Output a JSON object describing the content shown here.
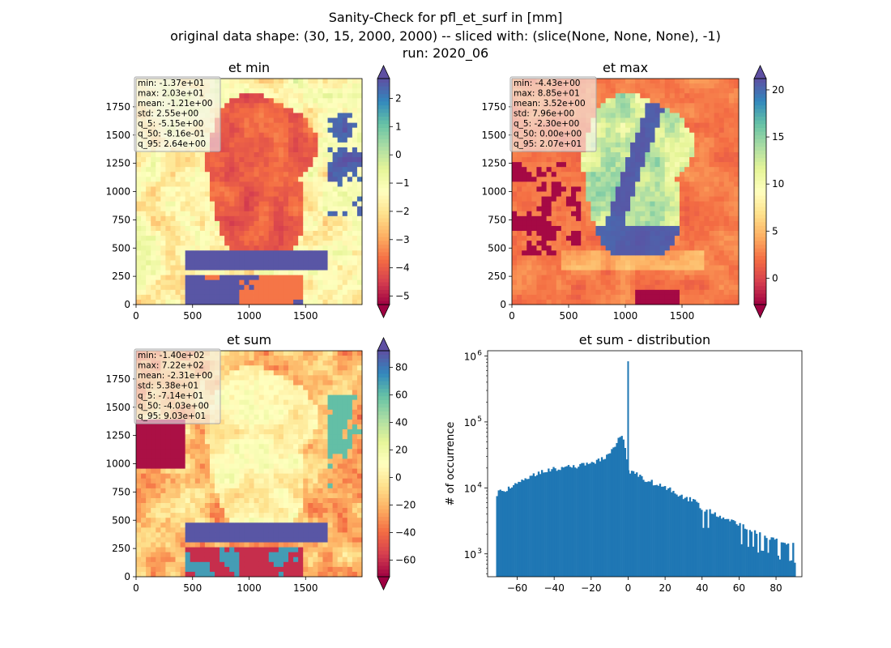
{
  "figure": {
    "title_lines": [
      "Sanity-Check for pfl_et_surf in [mm]",
      "original data shape: (30, 15, 2000, 2000) -- sliced with: (slice(None, None, None), -1)",
      "run: 2020_06"
    ]
  },
  "chart_data": [
    {
      "type": "heatmap",
      "title": "et min",
      "x_ticks": [
        "0",
        "500",
        "1000",
        "1500"
      ],
      "y_ticks": [
        "0",
        "250",
        "500",
        "750",
        "1000",
        "1250",
        "1500",
        "1750"
      ],
      "xlim": [
        0,
        2000
      ],
      "ylim": [
        0,
        2000
      ],
      "colormap": "Spectral",
      "colorbar": {
        "range": [
          -5.3,
          2.7
        ],
        "ticks": [
          "2",
          "1",
          "0",
          "−1",
          "−2",
          "−3",
          "−4",
          "−5"
        ],
        "extend": "both"
      },
      "stats": [
        "min: -1.37e+01",
        "max: 2.03e+01",
        "mean: -1.21e+00",
        "std: 2.55e+00",
        "q_5: -5.15e+00",
        "q_50: -8.16e-01",
        "q_95: 2.64e+00"
      ]
    },
    {
      "type": "heatmap",
      "title": "et max",
      "x_ticks": [
        "0",
        "500",
        "1000",
        "1500"
      ],
      "y_ticks": [
        "0",
        "250",
        "500",
        "750",
        "1000",
        "1250",
        "1500",
        "1750"
      ],
      "xlim": [
        0,
        2000
      ],
      "ylim": [
        0,
        2000
      ],
      "colormap": "Spectral",
      "colorbar": {
        "range": [
          -2.8,
          21.2
        ],
        "ticks": [
          "20",
          "15",
          "10",
          "5",
          "0"
        ],
        "extend": "both"
      },
      "stats": [
        "min: -4.43e+00",
        "max: 8.85e+01",
        "mean: 3.52e+00",
        "std: 7.96e+00",
        "q_5: -2.30e+00",
        "q_50: 0.00e+00",
        "q_95: 2.07e+01"
      ]
    },
    {
      "type": "heatmap",
      "title": "et sum",
      "x_ticks": [
        "0",
        "500",
        "1000",
        "1500"
      ],
      "y_ticks": [
        "0",
        "250",
        "500",
        "750",
        "1000",
        "1250",
        "1500",
        "1750"
      ],
      "xlim": [
        0,
        2000
      ],
      "ylim": [
        0,
        2000
      ],
      "colormap": "Spectral",
      "colorbar": {
        "range": [
          -72,
          92
        ],
        "ticks": [
          "80",
          "60",
          "40",
          "20",
          "0",
          "−20",
          "−40",
          "−60"
        ],
        "extend": "both"
      },
      "stats": [
        "min: -1.40e+02",
        "max: 7.22e+02",
        "mean: -2.31e+00",
        "std: 5.38e+01",
        "q_5: -7.14e+01",
        "q_50: -4.03e+00",
        "q_95: 9.03e+01"
      ]
    },
    {
      "type": "bar",
      "title": "et sum - distribution",
      "ylabel": "# of occurrence",
      "xlabel": "",
      "yscale": "log",
      "xlim": [
        -76,
        94
      ],
      "ylim": [
        450,
        1200000
      ],
      "x_ticks": [
        "−60",
        "−40",
        "−20",
        "0",
        "20",
        "40",
        "60",
        "80"
      ],
      "y_ticks": [
        "10",
        "10",
        "10",
        "10"
      ],
      "y_tick_exponents": [
        "3",
        "4",
        "5",
        "6"
      ],
      "color": "#1f77b4",
      "bin_range": [
        -71.4,
        90.3
      ],
      "bin_width": 0.9,
      "anchors": [
        [
          -71.4,
          7500
        ],
        [
          -70,
          8500
        ],
        [
          -65,
          9500
        ],
        [
          -60,
          12000
        ],
        [
          -55,
          14000
        ],
        [
          -50,
          16500
        ],
        [
          -45,
          18500
        ],
        [
          -40,
          19500
        ],
        [
          -35,
          20500
        ],
        [
          -30,
          21000
        ],
        [
          -25,
          22000
        ],
        [
          -20,
          24000
        ],
        [
          -15,
          27000
        ],
        [
          -10,
          33000
        ],
        [
          -7,
          42000
        ],
        [
          -5,
          55000
        ],
        [
          -4,
          62000
        ],
        [
          -3,
          60000
        ],
        [
          -2,
          48000
        ],
        [
          -1,
          30000
        ],
        [
          0,
          18000
        ],
        [
          2,
          17000
        ],
        [
          5,
          16000
        ],
        [
          10,
          13000
        ],
        [
          15,
          11500
        ],
        [
          20,
          10500
        ],
        [
          25,
          9000
        ],
        [
          30,
          7000
        ],
        [
          35,
          6500
        ],
        [
          40,
          5000
        ],
        [
          45,
          4400
        ],
        [
          50,
          3700
        ],
        [
          55,
          3300
        ],
        [
          60,
          2800
        ],
        [
          65,
          2500
        ],
        [
          70,
          2100
        ],
        [
          75,
          1800
        ],
        [
          80,
          1600
        ],
        [
          85,
          1500
        ],
        [
          90.3,
          1400
        ]
      ],
      "spike": {
        "x": 0,
        "value": 830000
      }
    }
  ]
}
